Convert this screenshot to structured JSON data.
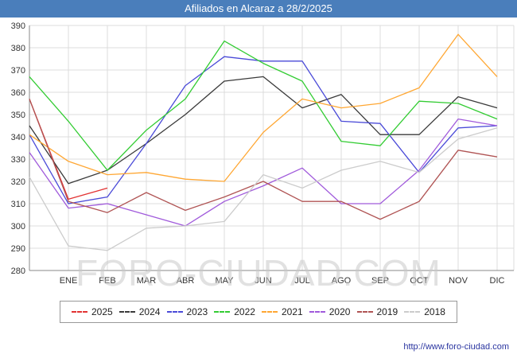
{
  "header": {
    "title": "Afiliados en Alcaraz a 28/2/2025",
    "bg": "#4a7ebb"
  },
  "watermark": "FORO-CIUDAD.COM",
  "footer": {
    "link": "http://www.foro-ciudad.com"
  },
  "chart_data": {
    "type": "line",
    "title": "Afiliados en Alcaraz a 28/2/2025",
    "xlabel": "",
    "ylabel": "",
    "ylim": [
      280,
      390
    ],
    "ytick_step": 10,
    "grid": true,
    "legend_position": "bottom",
    "categories": [
      "",
      "ENE",
      "FEB",
      "MAR",
      "ABR",
      "MAY",
      "JUN",
      "JUL",
      "AGO",
      "SEP",
      "OCT",
      "NOV",
      "DIC"
    ],
    "series": [
      {
        "name": "2025",
        "color": "#e23333",
        "values": [
          357,
          312,
          317
        ]
      },
      {
        "name": "2024",
        "color": "#3a3a3a",
        "values": [
          345,
          319,
          325,
          337,
          350,
          365,
          367,
          353,
          359,
          341,
          341,
          358,
          353
        ]
      },
      {
        "name": "2023",
        "color": "#4a4ad8",
        "values": [
          341,
          310,
          313,
          337,
          363,
          376,
          374,
          374,
          347,
          346,
          324,
          344,
          345
        ]
      },
      {
        "name": "2022",
        "color": "#33cc33",
        "values": [
          367,
          347,
          325,
          343,
          357,
          383,
          373,
          365,
          338,
          336,
          356,
          355,
          348
        ]
      },
      {
        "name": "2021",
        "color": "#ffa733",
        "values": [
          341,
          329,
          323,
          324,
          321,
          320,
          342,
          357,
          353,
          355,
          362,
          386,
          367
        ]
      },
      {
        "name": "2020",
        "color": "#a05adb",
        "values": [
          333,
          308,
          310,
          305,
          300,
          311,
          318,
          326,
          310,
          310,
          325,
          348,
          345
        ]
      },
      {
        "name": "2019",
        "color": "#b05454",
        "values": [
          357,
          311,
          306,
          315,
          307,
          313,
          320,
          311,
          311,
          303,
          311,
          334,
          331
        ]
      },
      {
        "name": "2018",
        "color": "#cccccc",
        "values": [
          322,
          291,
          289,
          299,
          300,
          302,
          323,
          317,
          325,
          329,
          324,
          339,
          344
        ]
      }
    ]
  }
}
